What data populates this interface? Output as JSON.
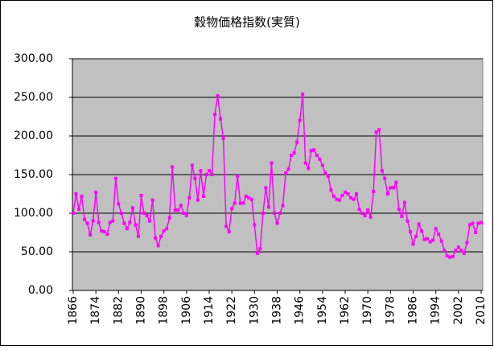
{
  "chart_data": {
    "type": "line",
    "title": "穀物価格指数(実質)",
    "x": [
      1866,
      1867,
      1868,
      1869,
      1870,
      1871,
      1872,
      1873,
      1874,
      1875,
      1876,
      1877,
      1878,
      1879,
      1880,
      1881,
      1882,
      1883,
      1884,
      1885,
      1886,
      1887,
      1888,
      1889,
      1890,
      1891,
      1892,
      1893,
      1894,
      1895,
      1896,
      1897,
      1898,
      1899,
      1900,
      1901,
      1902,
      1903,
      1904,
      1905,
      1906,
      1907,
      1908,
      1909,
      1910,
      1911,
      1912,
      1913,
      1914,
      1915,
      1916,
      1917,
      1918,
      1919,
      1920,
      1921,
      1922,
      1923,
      1924,
      1925,
      1926,
      1927,
      1928,
      1929,
      1930,
      1931,
      1932,
      1933,
      1934,
      1935,
      1936,
      1937,
      1938,
      1939,
      1940,
      1941,
      1942,
      1943,
      1944,
      1945,
      1946,
      1947,
      1948,
      1949,
      1950,
      1951,
      1952,
      1953,
      1954,
      1955,
      1956,
      1957,
      1958,
      1959,
      1960,
      1961,
      1962,
      1963,
      1964,
      1965,
      1966,
      1967,
      1968,
      1969,
      1970,
      1971,
      1972,
      1973,
      1974,
      1975,
      1976,
      1977,
      1978,
      1979,
      1980,
      1981,
      1982,
      1983,
      1984,
      1985,
      1986,
      1987,
      1988,
      1989,
      1990,
      1991,
      1992,
      1993,
      1994,
      1995,
      1996,
      1997,
      1998,
      1999,
      2000,
      2001,
      2002,
      2003,
      2004,
      2005,
      2006,
      2007,
      2008,
      2009,
      2010
    ],
    "values": [
      100,
      125,
      105,
      122,
      92,
      87,
      72,
      90,
      127,
      88,
      77,
      76,
      73,
      88,
      90,
      145,
      112,
      100,
      87,
      80,
      88,
      107,
      85,
      70,
      123,
      100,
      97,
      90,
      117,
      68,
      58,
      70,
      77,
      80,
      94,
      160,
      104,
      104,
      110,
      100,
      97,
      120,
      162,
      145,
      117,
      155,
      122,
      150,
      155,
      150,
      228,
      252,
      222,
      197,
      83,
      76,
      106,
      113,
      148,
      113,
      113,
      122,
      120,
      118,
      85,
      48,
      54,
      100,
      133,
      108,
      165,
      100,
      87,
      100,
      110,
      152,
      157,
      175,
      178,
      192,
      220,
      254,
      165,
      158,
      181,
      182,
      175,
      170,
      162,
      152,
      148,
      130,
      122,
      118,
      117,
      123,
      127,
      125,
      120,
      118,
      125,
      105,
      100,
      97,
      104,
      95,
      128,
      205,
      208,
      155,
      145,
      125,
      133,
      133,
      140,
      105,
      96,
      114,
      90,
      76,
      60,
      70,
      86,
      77,
      66,
      67,
      63,
      65,
      80,
      73,
      64,
      52,
      45,
      43,
      44,
      52,
      56,
      52,
      48,
      62,
      85,
      87,
      75,
      87,
      88
    ],
    "color": "#ff00ff",
    "xlim": [
      1866,
      2010
    ],
    "xticks": [
      1866,
      1874,
      1882,
      1890,
      1898,
      1906,
      1914,
      1922,
      1930,
      1938,
      1946,
      1954,
      1962,
      1970,
      1978,
      1986,
      1994,
      2002,
      2010
    ],
    "ylim": [
      0,
      300
    ],
    "yticks": [
      {
        "value": 0,
        "label": "0.00"
      },
      {
        "value": 50,
        "label": "50.00"
      },
      {
        "value": 100,
        "label": "100.00"
      },
      {
        "value": 150,
        "label": "150.00"
      },
      {
        "value": 200,
        "label": "200.00"
      },
      {
        "value": 250,
        "label": "250.00"
      },
      {
        "value": 300,
        "label": "300.00"
      }
    ],
    "grid": true
  }
}
